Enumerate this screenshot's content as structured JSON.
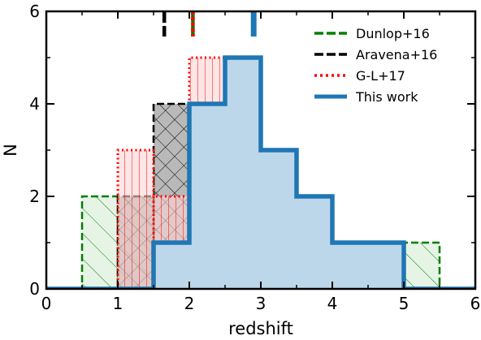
{
  "chart_data": {
    "type": "bar",
    "title": "",
    "xlabel": "redshift",
    "ylabel": "N",
    "xlim": [
      0,
      6
    ],
    "ylim": [
      0,
      6
    ],
    "xticks": [
      "0",
      "1",
      "2",
      "3",
      "4",
      "5",
      "6"
    ],
    "yticks": [
      "0",
      "2",
      "4",
      "6"
    ],
    "grid": false,
    "legend_position": "top-right",
    "bin_edges": [
      0.0,
      0.5,
      1.0,
      1.5,
      2.0,
      2.5,
      3.0,
      3.5,
      4.0,
      4.5,
      5.0,
      5.5,
      6.0
    ],
    "series": [
      {
        "name": "Dunlop+16",
        "style": "dashed",
        "hatch": "diagonal",
        "color": "#007f00",
        "fill": "#d6ecd6",
        "values": [
          0,
          2,
          2,
          1,
          3,
          3,
          1,
          0,
          0,
          0,
          1,
          0
        ],
        "median": 2.05
      },
      {
        "name": "Aravena+16",
        "style": "dashed",
        "hatch": "cross",
        "color": "#000000",
        "fill": "#8a8a8a",
        "values": [
          0,
          0,
          2,
          4,
          0,
          1,
          0,
          0,
          0,
          0,
          0,
          0
        ],
        "median": 1.65
      },
      {
        "name": "G-L+17",
        "style": "dotted",
        "hatch": "vertical",
        "color": "#ff0000",
        "fill": "#ffd6d6",
        "values": [
          0,
          0,
          3,
          2,
          5,
          2,
          0,
          0,
          0,
          0,
          0,
          0
        ],
        "median": 2.05
      },
      {
        "name": "This work",
        "style": "solid",
        "hatch": "none",
        "color": "#1f77b4",
        "fill": "#bdd7ea",
        "values": [
          0,
          0,
          0,
          1,
          4,
          5,
          3,
          2,
          1,
          1,
          0,
          0
        ],
        "median": 2.9
      }
    ]
  }
}
